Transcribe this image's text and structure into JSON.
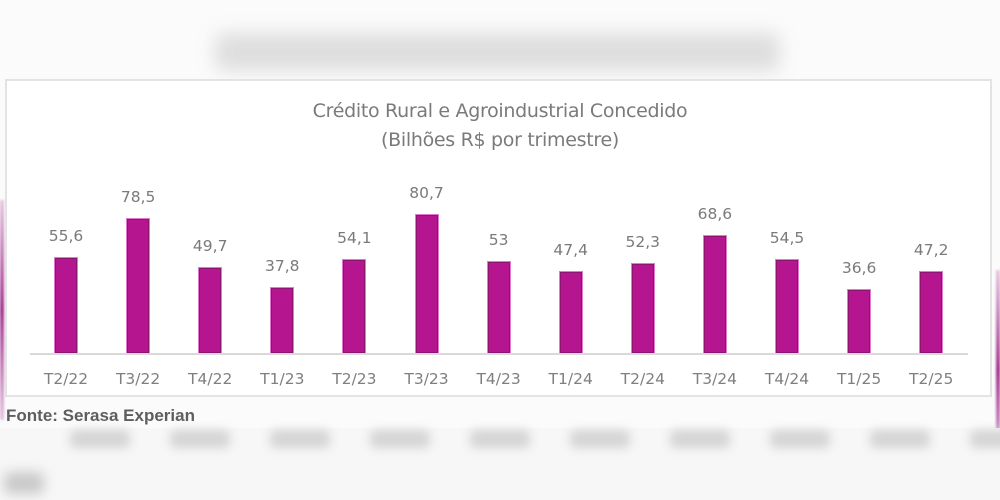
{
  "background": {
    "blurred_heading": "",
    "colors": {
      "page": "#fbfbfb",
      "bar": "#b5158f",
      "text": "#7a7a7a",
      "source_text": "#5e5e5e"
    }
  },
  "chart": {
    "title": "Crédito Rural e Agroindustrial Concedido",
    "subtitle": "(Bilhões R$ por trimestre)",
    "source": "Fonte: Serasa Experian"
  },
  "chart_data": {
    "type": "bar",
    "title": "Crédito Rural e Agroindustrial Concedido",
    "subtitle": "(Bilhões R$ por trimestre)",
    "xlabel": "",
    "ylabel": "",
    "unit": "Bilhões R$",
    "categories": [
      "T2/22",
      "T3/22",
      "T4/22",
      "T1/23",
      "T2/23",
      "T3/23",
      "T4/23",
      "T1/24",
      "T2/24",
      "T3/24",
      "T4/24",
      "T1/25",
      "T2/25"
    ],
    "values": [
      55.6,
      78.5,
      49.7,
      37.8,
      54.1,
      80.7,
      53,
      47.4,
      52.3,
      68.6,
      54.5,
      36.6,
      47.2
    ],
    "value_labels": [
      "55,6",
      "78,5",
      "49,7",
      "37,8",
      "54,1",
      "80,7",
      "53",
      "47,4",
      "52,3",
      "68,6",
      "54,5",
      "36,6",
      "47,2"
    ],
    "ylim": [
      0,
      90
    ],
    "grid": false,
    "legend": "none",
    "color": "#b5158f",
    "source": "Fonte: Serasa Experian"
  }
}
